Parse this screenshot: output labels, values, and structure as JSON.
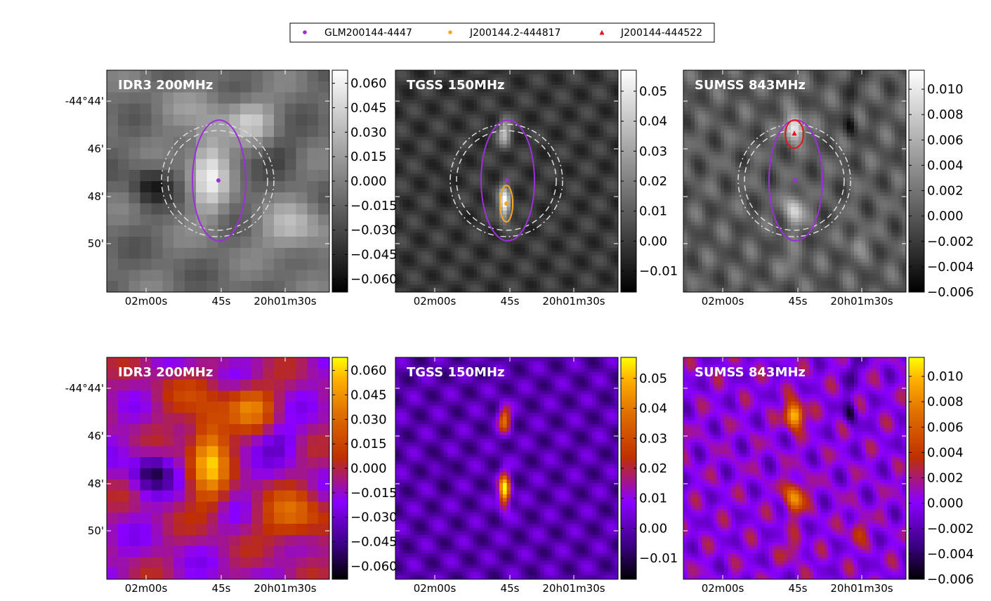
{
  "legend": {
    "items": [
      {
        "label": "GLM200144-4447",
        "marker": "circle",
        "color": "#9b30d9"
      },
      {
        "label": "J200144.2-444817",
        "marker": "circle",
        "color": "#f5a623"
      },
      {
        "label": "J200144-444522",
        "marker": "triangle",
        "color": "#e8131a"
      }
    ]
  },
  "axes": {
    "x_ticks": [
      "02m00s",
      "45s",
      "20h01m30s"
    ],
    "y_ticks": [
      "-44°44'",
      "46'",
      "48'",
      "50'"
    ]
  },
  "colors": {
    "glm": "#9b30d9",
    "tgss_src": "#f5a623",
    "sumss_src": "#e8131a",
    "ring": "#dddddd"
  },
  "chart_data": [
    {
      "type": "heatmap",
      "panel": "top-left",
      "title": "IDR3 200MHz",
      "colormap": "gray",
      "colorbar": {
        "range": [
          -0.068,
          0.068
        ],
        "ticks": [
          0.06,
          0.045,
          0.03,
          0.015,
          0.0,
          -0.015,
          -0.03,
          -0.045,
          -0.06
        ],
        "tick_labels": [
          "0.060",
          "0.045",
          "0.030",
          "0.015",
          "0.000",
          "−0.015",
          "−0.030",
          "−0.045",
          "−0.060"
        ]
      },
      "overlays": [
        "rings",
        "glm"
      ]
    },
    {
      "type": "heatmap",
      "panel": "top-center",
      "title": "TGSS 150MHz",
      "colormap": "gray",
      "colorbar": {
        "range": [
          -0.017,
          0.057
        ],
        "ticks": [
          0.05,
          0.04,
          0.03,
          0.02,
          0.01,
          0.0,
          -0.01
        ],
        "tick_labels": [
          "0.05",
          "0.04",
          "0.03",
          "0.02",
          "0.01",
          "0.00",
          "−0.01"
        ]
      },
      "overlays": [
        "rings",
        "glm",
        "tgss_src"
      ]
    },
    {
      "type": "heatmap",
      "panel": "top-right",
      "title": "SUMSS 843MHz",
      "colormap": "gray",
      "colorbar": {
        "range": [
          -0.006,
          0.0115
        ],
        "ticks": [
          0.01,
          0.008,
          0.006,
          0.004,
          0.002,
          0.0,
          -0.002,
          -0.004,
          -0.006
        ],
        "tick_labels": [
          "0.010",
          "0.008",
          "0.006",
          "0.004",
          "0.002",
          "0.000",
          "−0.002",
          "−0.004",
          "−0.006"
        ]
      },
      "overlays": [
        "rings",
        "glm",
        "sumss_src"
      ]
    },
    {
      "type": "heatmap",
      "panel": "bottom-left",
      "title": "IDR3 200MHz",
      "colormap": "gnuplot",
      "colorbar": {
        "range": [
          -0.068,
          0.068
        ],
        "ticks": [
          0.06,
          0.045,
          0.03,
          0.015,
          0.0,
          -0.015,
          -0.03,
          -0.045,
          -0.06
        ],
        "tick_labels": [
          "0.060",
          "0.045",
          "0.030",
          "0.015",
          "0.000",
          "−0.015",
          "−0.030",
          "−0.045",
          "−0.060"
        ]
      },
      "overlays": []
    },
    {
      "type": "heatmap",
      "panel": "bottom-center",
      "title": "TGSS 150MHz",
      "colormap": "gnuplot",
      "colorbar": {
        "range": [
          -0.017,
          0.057
        ],
        "ticks": [
          0.05,
          0.04,
          0.03,
          0.02,
          0.01,
          0.0,
          -0.01
        ],
        "tick_labels": [
          "0.05",
          "0.04",
          "0.03",
          "0.02",
          "0.01",
          "0.00",
          "−0.01"
        ]
      },
      "overlays": []
    },
    {
      "type": "heatmap",
      "panel": "bottom-right",
      "title": "SUMSS 843MHz",
      "colormap": "gnuplot",
      "colorbar": {
        "range": [
          -0.006,
          0.0115
        ],
        "ticks": [
          0.01,
          0.008,
          0.006,
          0.004,
          0.002,
          0.0,
          -0.002,
          -0.004,
          -0.006
        ],
        "tick_labels": [
          "0.010",
          "0.008",
          "0.006",
          "0.004",
          "0.002",
          "0.000",
          "−0.002",
          "−0.004",
          "−0.006"
        ]
      },
      "overlays": []
    }
  ]
}
